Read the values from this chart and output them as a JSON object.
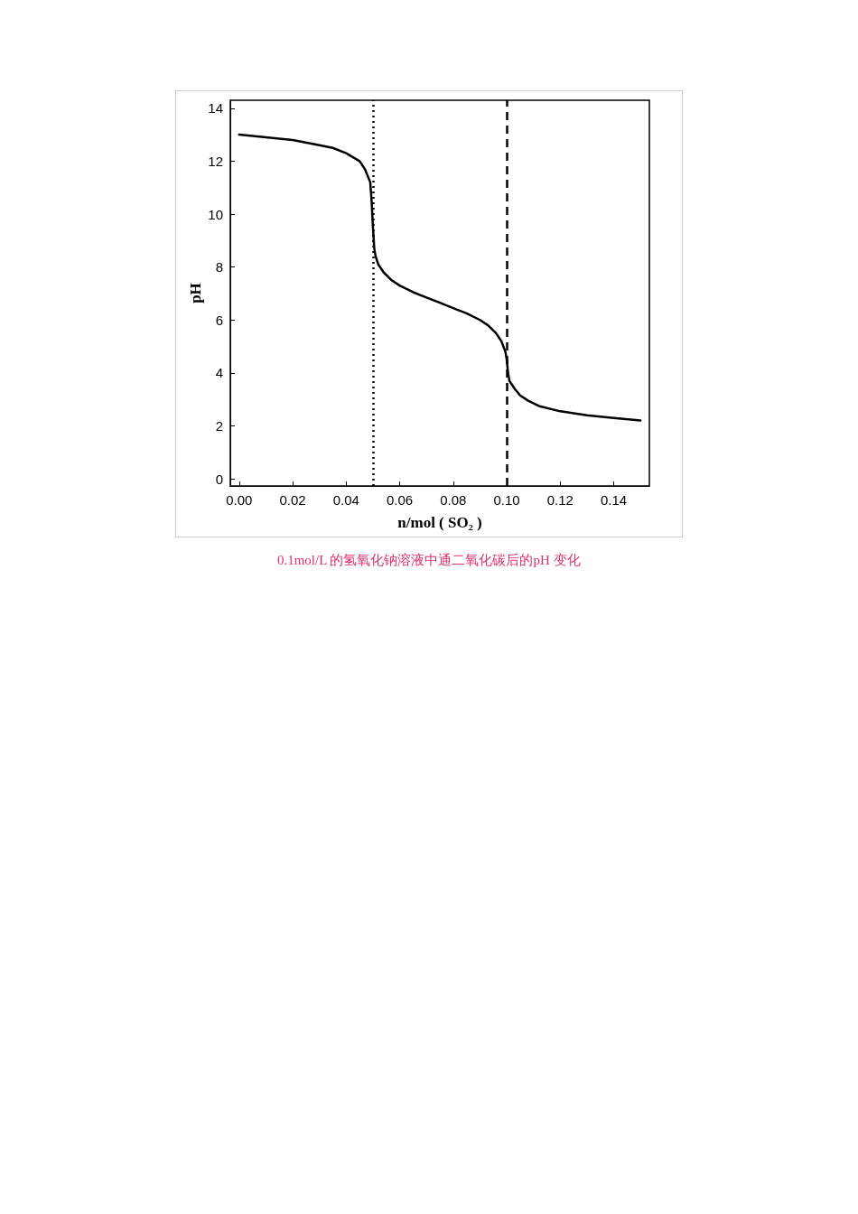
{
  "chart_data": {
    "type": "line",
    "xlabel": "n/mol ( SO₂ )",
    "ylabel": "pH",
    "annotations": [
      "0.1mol/L 的氢氧化钠溶液中通二氧化碳后的pH 变化"
    ],
    "series": [
      {
        "color": "#000000",
        "x": [
          0,
          0.01,
          0.02,
          0.03,
          0.035,
          0.04,
          0.045,
          0.047,
          0.049,
          0.0495,
          0.05,
          0.0505,
          0.051,
          0.052,
          0.054,
          0.057,
          0.06,
          0.065,
          0.07,
          0.075,
          0.08,
          0.085,
          0.09,
          0.093,
          0.096,
          0.098,
          0.0995,
          0.1,
          0.1005,
          0.101,
          0.103,
          0.105,
          0.108,
          0.112,
          0.12,
          0.13,
          0.14,
          0.15
        ],
        "values": [
          13.0,
          12.9,
          12.8,
          12.6,
          12.5,
          12.3,
          12.0,
          11.7,
          11.2,
          10.5,
          9.5,
          8.7,
          8.4,
          8.1,
          7.8,
          7.5,
          7.3,
          7.05,
          6.85,
          6.65,
          6.45,
          6.25,
          6.0,
          5.8,
          5.5,
          5.2,
          4.8,
          4.5,
          4.0,
          3.7,
          3.4,
          3.15,
          2.95,
          2.75,
          2.55,
          2.4,
          2.3,
          2.2
        ]
      }
    ],
    "xlim": [
      -0.0033,
      0.1533
    ],
    "xticks": [
      {
        "value": 0,
        "label": "0.00"
      },
      {
        "value": 0.02,
        "label": "0.02"
      },
      {
        "value": 0.04,
        "label": "0.04"
      },
      {
        "value": 0.06,
        "label": "0.06"
      },
      {
        "value": 0.08,
        "label": "0.08"
      },
      {
        "value": 0.1,
        "label": "0.10"
      },
      {
        "value": 0.12,
        "label": "0.12"
      },
      {
        "value": 0.14,
        "label": "0.14"
      }
    ],
    "ylim": [
      -0.27,
      14.3
    ],
    "yticks": [
      0,
      2,
      4,
      6,
      8,
      10,
      12,
      14
    ],
    "ref_lines": [
      {
        "axis": "x",
        "value": 0.05,
        "line_style": "dotted",
        "color": "#000000"
      },
      {
        "axis": "x",
        "value": 0.1,
        "line_style": "dashed",
        "color": "#000000"
      }
    ],
    "marker": "none",
    "line_style": "solid"
  }
}
